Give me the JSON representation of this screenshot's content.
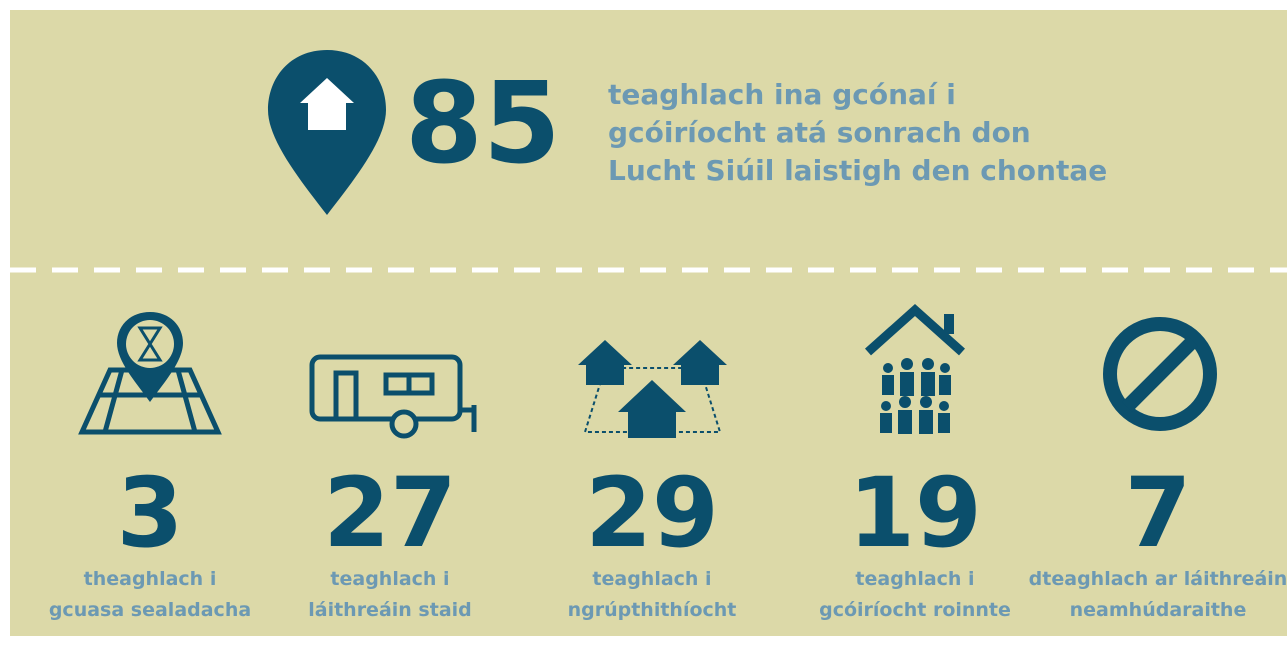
{
  "header": {
    "value": 85,
    "lines": [
      "teaghlach ina gcónaí i",
      "gcóiríocht atá sonrach don",
      "Lucht Siúil laistigh den chontae"
    ]
  },
  "items": [
    {
      "value": 3,
      "lines": [
        "theaghlach i",
        "gcuasa sealadacha"
      ]
    },
    {
      "value": 27,
      "lines": [
        "teaghlach i",
        "láithreáin staid"
      ]
    },
    {
      "value": 29,
      "lines": [
        "teaghlach i",
        "ngrúpthithíocht"
      ]
    },
    {
      "value": 19,
      "lines": [
        "teaghlach i",
        "gcóiríocht roinnte"
      ]
    },
    {
      "value": 7,
      "lines": [
        "dteaghlach ar láithreáin",
        "neamhúdaraithe"
      ]
    }
  ]
}
